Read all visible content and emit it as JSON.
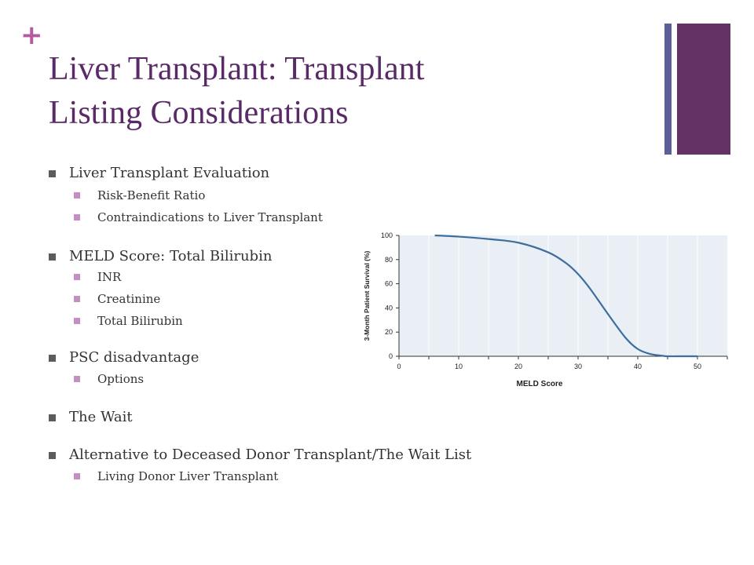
{
  "slide": {
    "plus_glyph": "+",
    "title_line1": "Liver Transplant:  Transplant",
    "title_line2": "Listing Considerations"
  },
  "bullets": [
    {
      "level": 1,
      "text": "Liver Transplant Evaluation"
    },
    {
      "level": 2,
      "text": "Risk-Benefit Ratio"
    },
    {
      "level": 2,
      "text": "Contraindications to Liver Transplant"
    },
    {
      "level": 1,
      "text": "MELD Score:  Total Bilirubin"
    },
    {
      "level": 2,
      "text": "INR"
    },
    {
      "level": 2,
      "text": "Creatinine"
    },
    {
      "level": 2,
      "text": "Total Bilirubin"
    },
    {
      "level": 1,
      "text": "PSC disadvantage"
    },
    {
      "level": 2,
      "text": "Options"
    },
    {
      "level": 1,
      "text": "The Wait"
    },
    {
      "level": 1,
      "text": "Alternative to Deceased Donor Transplant/The Wait List"
    },
    {
      "level": 2,
      "text": "Living Donor Liver Transplant"
    }
  ],
  "colors": {
    "title": "#5a2a68",
    "plus": "#b45aa0",
    "accent_bar_thin": "#5b5f97",
    "accent_bar_thick": "#643264",
    "curve": "#3d6e9e",
    "plot_background": "#e9eff5"
  },
  "chart_data": {
    "type": "line",
    "xlabel": "MELD Score",
    "ylabel": "3-Month Patient Survival (%)",
    "xlim": [
      0,
      55
    ],
    "ylim": [
      0,
      100
    ],
    "xticks": [
      "0",
      "10",
      "20",
      "30",
      "40",
      "50"
    ],
    "yticks": [
      "0",
      "20",
      "40",
      "60",
      "80",
      "100"
    ],
    "grid": "vertical",
    "series": [
      {
        "x": [
          6,
          10,
          15,
          20,
          25,
          28,
          30,
          32,
          35,
          38,
          40,
          42,
          44,
          45,
          48,
          50
        ],
        "y": [
          100,
          99,
          97,
          94,
          86,
          77,
          68,
          56,
          35,
          15,
          6,
          2,
          0.5,
          0,
          0,
          0
        ]
      }
    ]
  }
}
